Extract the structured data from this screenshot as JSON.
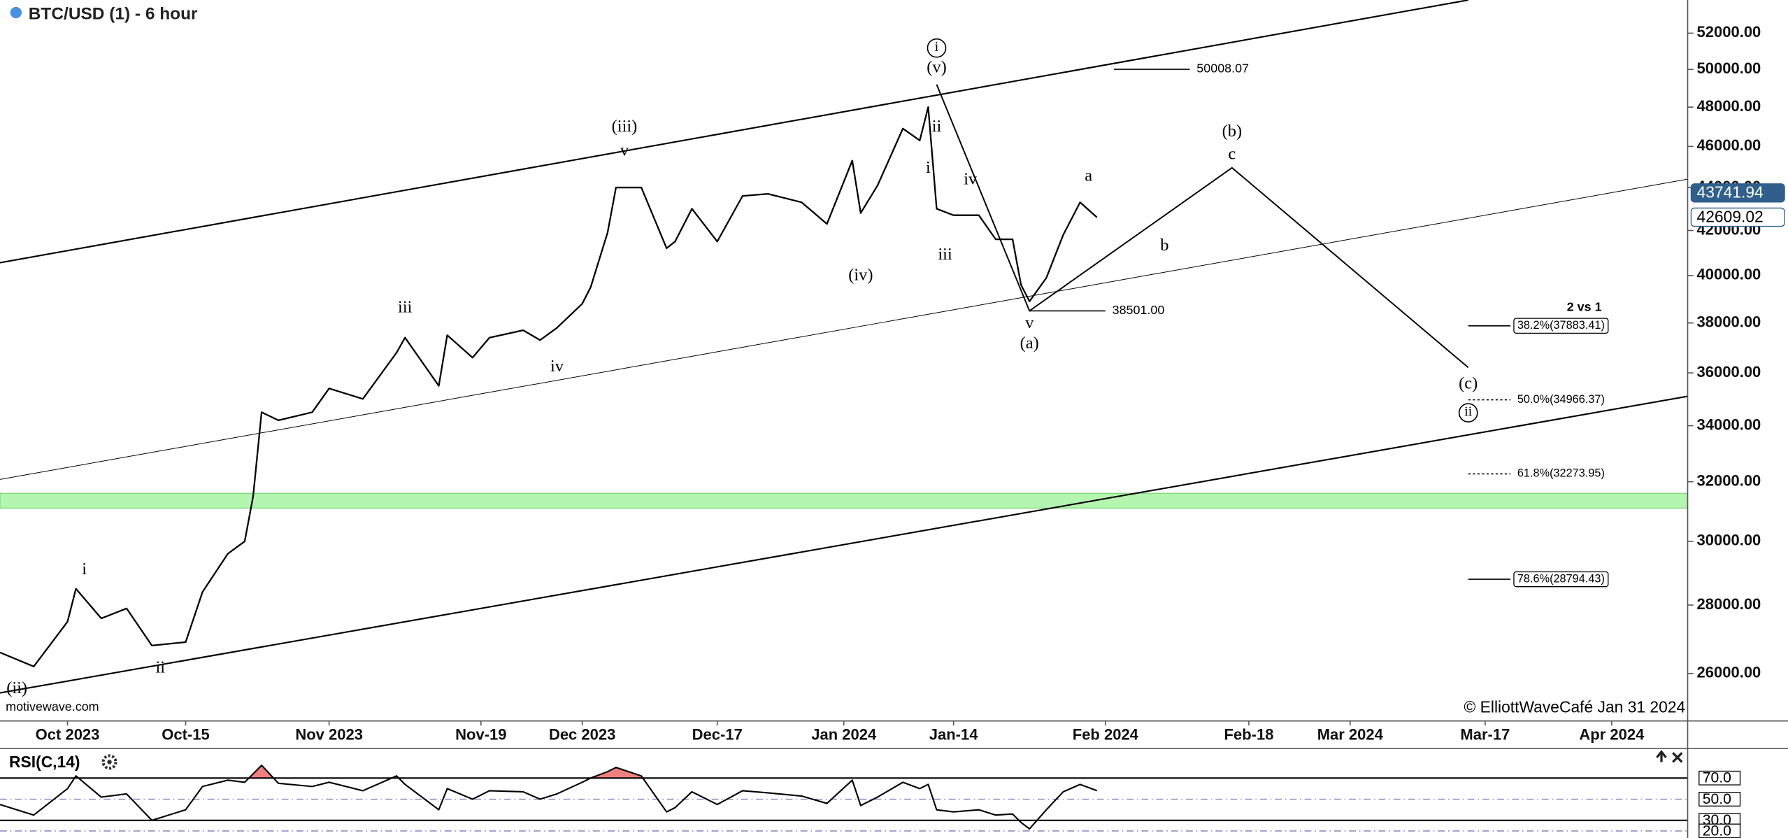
{
  "chart_data": [
    {
      "type": "line",
      "title": "BTC/USD (1) - 6 hour",
      "log_scale": true,
      "color": "#000000",
      "x": [
        "2023-09-23",
        "2023-09-27",
        "2023-10-01",
        "2023-10-02",
        "2023-10-05",
        "2023-10-08",
        "2023-10-11",
        "2023-10-15",
        "2023-10-17",
        "2023-10-20",
        "2023-10-22",
        "2023-10-23",
        "2023-10-24",
        "2023-10-26",
        "2023-10-30",
        "2023-11-01",
        "2023-11-05",
        "2023-11-09",
        "2023-11-10",
        "2023-11-14",
        "2023-11-15",
        "2023-11-18",
        "2023-11-20",
        "2023-11-24",
        "2023-11-26",
        "2023-11-28",
        "2023-12-01",
        "2023-12-02",
        "2023-12-04",
        "2023-12-05",
        "2023-12-08",
        "2023-12-11",
        "2023-12-12",
        "2023-12-14",
        "2023-12-17",
        "2023-12-20",
        "2023-12-23",
        "2023-12-27",
        "2023-12-30",
        "2024-01-02",
        "2024-01-03",
        "2024-01-05",
        "2024-01-08",
        "2024-01-10",
        "2024-01-11",
        "2024-01-12",
        "2024-01-14",
        "2024-01-17",
        "2024-01-19",
        "2024-01-21",
        "2024-01-22",
        "2024-01-23",
        "2024-01-25",
        "2024-01-27",
        "2024-01-29",
        "2024-01-31"
      ],
      "values": [
        26600,
        26200,
        27500,
        28500,
        27600,
        27900,
        26800,
        26900,
        28400,
        29600,
        30000,
        31500,
        34500,
        34200,
        34500,
        35400,
        35000,
        36800,
        37400,
        35500,
        37500,
        36600,
        37400,
        37700,
        37300,
        37800,
        38800,
        39500,
        41900,
        44000,
        44000,
        41200,
        41500,
        43000,
        41500,
        43600,
        43700,
        43300,
        42300,
        45300,
        42800,
        44100,
        46900,
        46300,
        48000,
        43000,
        42700,
        42700,
        41600,
        41600,
        39600,
        38900,
        39900,
        41800,
        43300,
        42600
      ],
      "xlim": [
        "2023-09-23",
        "2024-04-10"
      ],
      "xticks": [
        {
          "value": "2023-10-01",
          "label": "Oct 2023"
        },
        {
          "value": "2023-10-15",
          "label": "Oct-15"
        },
        {
          "value": "2023-11-01",
          "label": "Nov 2023"
        },
        {
          "value": "2023-11-19",
          "label": "Nov-19"
        },
        {
          "value": "2023-12-01",
          "label": "Dec 2023"
        },
        {
          "value": "2023-12-17",
          "label": "Dec-17"
        },
        {
          "value": "2024-01-01",
          "label": "Jan 2024"
        },
        {
          "value": "2024-01-14",
          "label": "Jan-14"
        },
        {
          "value": "2024-02-01",
          "label": "Feb 2024"
        },
        {
          "value": "2024-02-18",
          "label": "Feb-18"
        },
        {
          "value": "2024-03-01",
          "label": "Mar 2024"
        },
        {
          "value": "2024-03-17",
          "label": "Mar-17"
        },
        {
          "value": "2024-04-01",
          "label": "Apr 2024"
        }
      ],
      "ylim": [
        24700,
        53900
      ],
      "yticks": [
        {
          "value": 26000,
          "label": "26000.00"
        },
        {
          "value": 28000,
          "label": "28000.00"
        },
        {
          "value": 30000,
          "label": "30000.00"
        },
        {
          "value": 32000,
          "label": "32000.00"
        },
        {
          "value": 34000,
          "label": "34000.00"
        },
        {
          "value": 36000,
          "label": "36000.00"
        },
        {
          "value": 38000,
          "label": "38000.00"
        },
        {
          "value": 40000,
          "label": "40000.00"
        },
        {
          "value": 42000,
          "label": "42000.00"
        },
        {
          "value": 44000,
          "label": "44000.00"
        },
        {
          "value": 46000,
          "label": "46000.00"
        },
        {
          "value": 48000,
          "label": "48000.00"
        },
        {
          "value": 50000,
          "label": "50000.00"
        },
        {
          "value": 52000,
          "label": "52000.00"
        }
      ],
      "annotations": [
        {
          "text": "(ii)",
          "x": "2023-09-25",
          "y": 25560,
          "circled": false
        },
        {
          "text": "i",
          "x": "2023-10-03",
          "y": 29070,
          "circled": false
        },
        {
          "text": "ii",
          "x": "2023-10-12",
          "y": 26140,
          "circled": false
        },
        {
          "text": "iii",
          "x": "2023-11-10",
          "y": 38610,
          "circled": false
        },
        {
          "text": "iv",
          "x": "2023-11-28",
          "y": 36210,
          "circled": false
        },
        {
          "text": "(iii)",
          "x": "2023-12-06",
          "y": 46940,
          "circled": false
        },
        {
          "text": "v",
          "x": "2023-12-06",
          "y": 45740,
          "circled": false
        },
        {
          "text": "(iv)",
          "x": "2024-01-03",
          "y": 39970,
          "circled": false
        },
        {
          "text": "i",
          "x": "2024-01-12",
          "y": 51170,
          "circled": true
        },
        {
          "text": "(v)",
          "x": "2024-01-12",
          "y": 50050,
          "circled": false
        },
        {
          "text": "ii",
          "x": "2024-01-12",
          "y": 46950,
          "circled": false
        },
        {
          "text": "i",
          "x": "2024-01-11",
          "y": 44890,
          "circled": false
        },
        {
          "text": "iii",
          "x": "2024-01-13",
          "y": 40870,
          "circled": false
        },
        {
          "text": "iv",
          "x": "2024-01-16",
          "y": 44340,
          "circled": false
        },
        {
          "text": "v",
          "x": "2024-01-23",
          "y": 37950,
          "circled": false
        },
        {
          "text": "(a)",
          "x": "2024-01-23",
          "y": 37120,
          "circled": false
        },
        {
          "text": "a",
          "x": "2024-01-30",
          "y": 44510,
          "circled": false
        },
        {
          "text": "b",
          "x": "2024-02-08",
          "y": 41280,
          "circled": false
        },
        {
          "text": "(b)",
          "x": "2024-02-16",
          "y": 46700,
          "circled": false
        },
        {
          "text": "c",
          "x": "2024-02-16",
          "y": 45570,
          "circled": false
        },
        {
          "text": "(c)",
          "x": "2024-03-15",
          "y": 35550,
          "circled": false
        },
        {
          "text": "ii",
          "x": "2024-03-15",
          "y": 34480,
          "circled": true
        }
      ],
      "trend_lines": [
        {
          "x": [
            "2023-09-23",
            "2024-03-15"
          ],
          "y": [
            40560,
            53900
          ],
          "weight": "thick"
        },
        {
          "x": [
            "2023-09-23",
            "2024-04-10"
          ],
          "y": [
            32080,
            44400
          ],
          "weight": "thin"
        },
        {
          "x": [
            "2023-09-23",
            "2024-04-10"
          ],
          "y": [
            25460,
            35100
          ],
          "weight": "thick"
        }
      ],
      "projection": {
        "x": [
          "2024-01-12",
          "2024-01-23",
          "2024-02-16",
          "2024-03-15"
        ],
        "y": [
          49190,
          38500,
          44950,
          36210
        ]
      },
      "levels": [
        {
          "value": 50008.07,
          "label": "50008.07",
          "x": [
            "2024-02-02",
            "2024-02-11"
          ]
        },
        {
          "value": 38501.0,
          "label": "38501.00",
          "x": [
            "2024-01-23",
            "2024-02-01"
          ]
        }
      ],
      "fib_title": "2 vs 1",
      "fib_x": [
        "2024-03-15",
        "2024-03-20"
      ],
      "fib_levels": [
        {
          "value": 37883.41,
          "label": "38.2%(37883.41)",
          "boxed": true,
          "dashed": false
        },
        {
          "value": 34966.37,
          "label": "50.0%(34966.37)",
          "boxed": false,
          "dashed": true
        },
        {
          "value": 32273.95,
          "label": "61.8%(32273.95)",
          "boxed": false,
          "dashed": true
        },
        {
          "value": 28794.43,
          "label": "78.6%(28794.43)",
          "boxed": true,
          "dashed": false
        }
      ],
      "zone": {
        "y": [
          31100,
          31600
        ],
        "color": "#b4f5b0"
      },
      "price_tags": [
        {
          "value": 43741.94,
          "label": "43741.94",
          "color": "#2f5f8a",
          "text_color": "#ffffff"
        },
        {
          "value": 42609.02,
          "label": "42609.02",
          "color": "#ffffff",
          "text_color": "#000000"
        }
      ],
      "source": "motivewave.com",
      "credit": "© ElliottWaveCafé Jan 31 2024"
    },
    {
      "type": "line",
      "title": "RSI(C,14)",
      "color": "#000000",
      "overbought": 70,
      "overbought_color": "#f08080",
      "x": [
        "2023-09-23",
        "2023-09-27",
        "2023-10-01",
        "2023-10-02",
        "2023-10-05",
        "2023-10-08",
        "2023-10-11",
        "2023-10-15",
        "2023-10-17",
        "2023-10-20",
        "2023-10-22",
        "2023-10-23",
        "2023-10-24",
        "2023-10-26",
        "2023-10-30",
        "2023-11-01",
        "2023-11-05",
        "2023-11-09",
        "2023-11-10",
        "2023-11-14",
        "2023-11-15",
        "2023-11-18",
        "2023-11-20",
        "2023-11-24",
        "2023-11-26",
        "2023-11-28",
        "2023-12-01",
        "2023-12-02",
        "2023-12-04",
        "2023-12-05",
        "2023-12-08",
        "2023-12-11",
        "2023-12-12",
        "2023-12-14",
        "2023-12-17",
        "2023-12-20",
        "2023-12-23",
        "2023-12-27",
        "2023-12-30",
        "2024-01-02",
        "2024-01-03",
        "2024-01-05",
        "2024-01-08",
        "2024-01-10",
        "2024-01-11",
        "2024-01-12",
        "2024-01-14",
        "2024-01-17",
        "2024-01-19",
        "2024-01-21",
        "2024-01-22",
        "2024-01-23",
        "2024-01-25",
        "2024-01-27",
        "2024-01-29",
        "2024-01-31"
      ],
      "values": [
        45,
        35,
        60,
        72,
        52,
        55,
        30,
        40,
        62,
        68,
        66,
        74,
        82,
        65,
        62,
        66,
        58,
        72,
        64,
        40,
        60,
        50,
        58,
        57,
        50,
        55,
        66,
        70,
        76,
        80,
        72,
        38,
        42,
        57,
        45,
        58,
        56,
        53,
        46,
        68,
        44,
        52,
        66,
        60,
        64,
        40,
        38,
        40,
        35,
        36,
        28,
        22,
        40,
        57,
        64,
        58
      ],
      "ylim": [
        14,
        97
      ],
      "yticks": [
        {
          "value": 70,
          "label": "70.0"
        },
        {
          "value": 50,
          "label": "50.0"
        },
        {
          "value": 30,
          "label": "30.0"
        },
        {
          "value": 20,
          "label": "20.0"
        }
      ]
    }
  ]
}
